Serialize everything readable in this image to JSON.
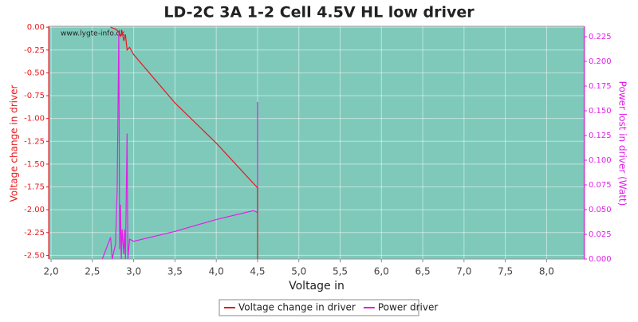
{
  "chart_data": {
    "type": "line",
    "title": "LD-2C 3A 1-2 Cell 4.5V HL low driver",
    "xlabel": "Voltage in",
    "ylabel": "Voltage change in driver",
    "y2label": "Power lost in driver (Watt)",
    "watermark": "www.lygte-info.dk",
    "background": "#7fc9bb",
    "grid": true,
    "legend": "bottom",
    "xlim": [
      1.98,
      8.45
    ],
    "ylim": [
      -2.54,
      0.01
    ],
    "y2lim": [
      0,
      0.2355
    ],
    "xticks": [
      {
        "value": 2.0,
        "label": "2,0"
      },
      {
        "value": 2.5,
        "label": "2,5"
      },
      {
        "value": 3.0,
        "label": "3,0"
      },
      {
        "value": 3.5,
        "label": "3,5"
      },
      {
        "value": 4.0,
        "label": "4,0"
      },
      {
        "value": 4.5,
        "label": "4,5"
      },
      {
        "value": 5.0,
        "label": "5,0"
      },
      {
        "value": 5.5,
        "label": "5,5"
      },
      {
        "value": 6.0,
        "label": "6,0"
      },
      {
        "value": 6.5,
        "label": "6,5"
      },
      {
        "value": 7.0,
        "label": "7,0"
      },
      {
        "value": 7.5,
        "label": "7,5"
      },
      {
        "value": 8.0,
        "label": "8,0"
      }
    ],
    "yticks": [
      {
        "value": 0,
        "label": "0.00"
      },
      {
        "value": -0.25,
        "label": "-0.25"
      },
      {
        "value": -0.5,
        "label": "-0.50"
      },
      {
        "value": -0.75,
        "label": "-0.75"
      },
      {
        "value": -1,
        "label": "-1.00"
      },
      {
        "value": -1.25,
        "label": "-1.25"
      },
      {
        "value": -1.5,
        "label": "-1.50"
      },
      {
        "value": -1.75,
        "label": "-1.75"
      },
      {
        "value": -2,
        "label": "-2.00"
      },
      {
        "value": -2.25,
        "label": "-2.25"
      },
      {
        "value": -2.5,
        "label": "-2.50"
      }
    ],
    "y2ticks": [
      {
        "value": 0,
        "label": "0.000"
      },
      {
        "value": 0.025,
        "label": "0.025"
      },
      {
        "value": 0.05,
        "label": "0.050"
      },
      {
        "value": 0.075,
        "label": "0.075"
      },
      {
        "value": 0.1,
        "label": "0.100"
      },
      {
        "value": 0.125,
        "label": "0.125"
      },
      {
        "value": 0.15,
        "label": "0.150"
      },
      {
        "value": 0.175,
        "label": "0.175"
      },
      {
        "value": 0.2,
        "label": "0.200"
      },
      {
        "value": 0.225,
        "label": "0.225"
      }
    ],
    "series": [
      {
        "name": "Voltage change in driver",
        "color": "#e8181c",
        "axis": "y",
        "x": [
          2.72,
          2.78,
          2.82,
          2.84,
          2.86,
          2.88,
          2.9,
          2.92,
          2.95,
          3.0,
          3.5,
          4.0,
          4.5,
          4.5
        ],
        "values": [
          0.0,
          -0.02,
          -0.05,
          -0.1,
          -0.05,
          -0.15,
          -0.08,
          -0.25,
          -0.22,
          -0.3,
          -0.83,
          -1.27,
          -1.76,
          -2.54
        ]
      },
      {
        "name": "Power driver",
        "color": "#e020e8",
        "axis": "y2",
        "x": [
          2.62,
          2.72,
          2.74,
          2.78,
          2.8,
          2.82,
          2.83,
          2.84,
          2.85,
          2.86,
          2.88,
          2.89,
          2.9,
          2.92,
          2.93,
          2.95,
          3.0,
          3.5,
          4.0,
          4.45,
          4.5,
          4.5
        ],
        "values": [
          0.0,
          0.022,
          0.0,
          0.015,
          0.07,
          0.23,
          0.01,
          0.055,
          0.0,
          0.03,
          0.005,
          0.03,
          0.0,
          0.127,
          0.0,
          0.02,
          0.018,
          0.028,
          0.04,
          0.049,
          0.047,
          0.159
        ]
      }
    ]
  }
}
